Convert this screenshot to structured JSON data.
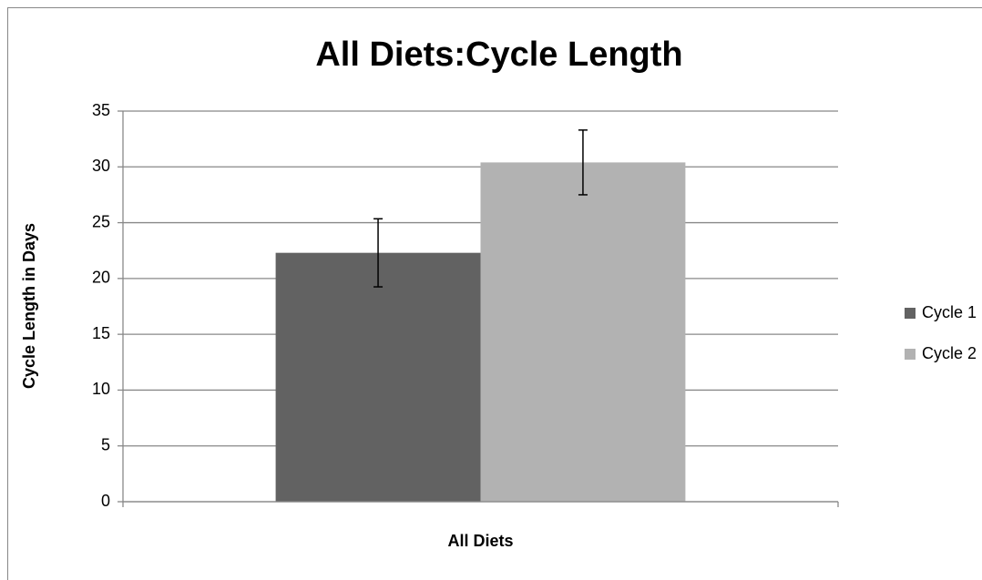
{
  "chart_data": {
    "type": "bar",
    "title": "All Diets:Cycle Length",
    "ylabel": "Cycle Length in Days",
    "categories": [
      "All Diets"
    ],
    "series": [
      {
        "name": "Cycle 1",
        "color": "#626262",
        "values": [
          22.3
        ],
        "errors": [
          3.05
        ]
      },
      {
        "name": "Cycle 2",
        "color": "#b2b2b2",
        "values": [
          30.4
        ],
        "errors": [
          2.9
        ]
      }
    ],
    "ylim": [
      0,
      35
    ],
    "yticks": [
      0,
      5,
      10,
      15,
      20,
      25,
      30,
      35
    ],
    "grid": true,
    "legend": "right"
  }
}
